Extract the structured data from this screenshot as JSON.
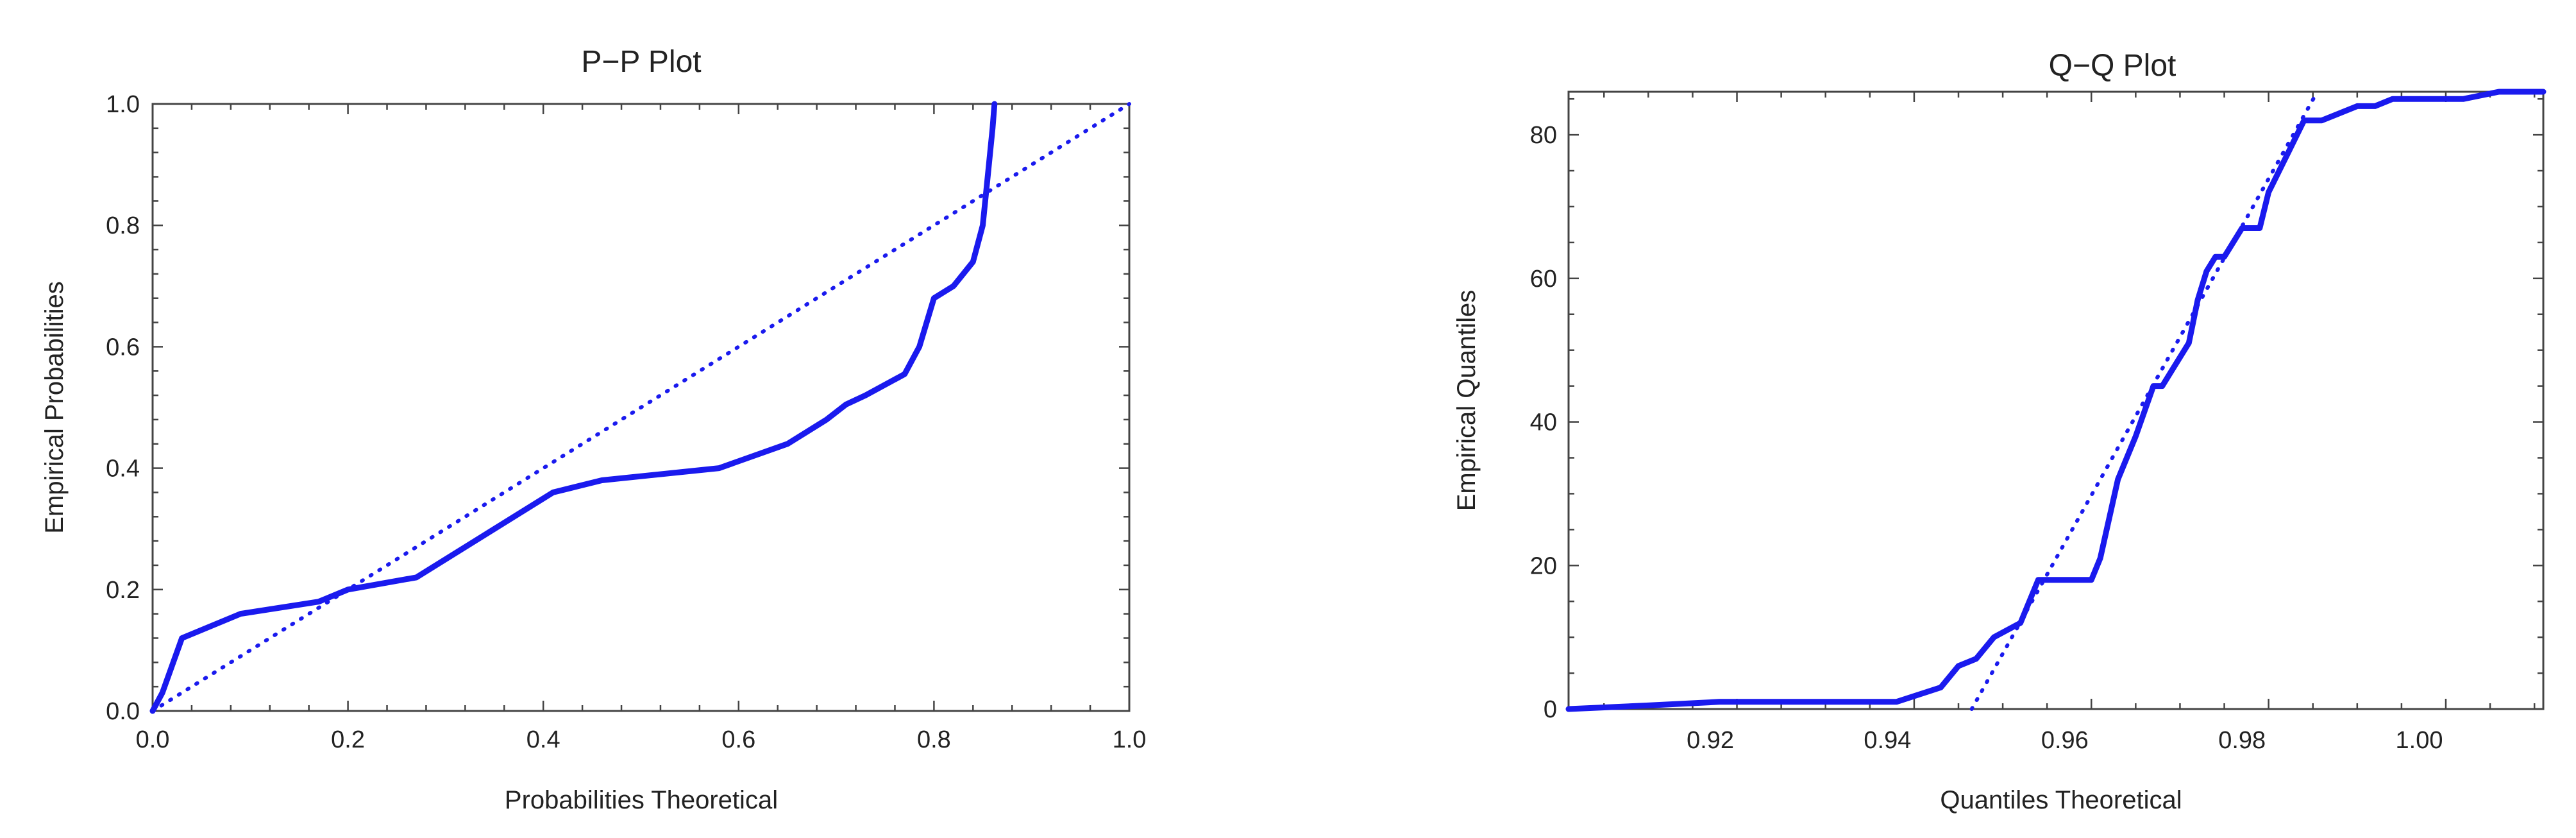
{
  "colors": {
    "series": "#1a1aee",
    "frame": "#444444",
    "text": "#222222"
  },
  "chart_data": [
    {
      "type": "line",
      "title": "P−P Plot",
      "xlabel": "Probabilities Theoretical",
      "ylabel": "Empirical  Probabilities",
      "xlim": [
        0,
        1
      ],
      "ylim": [
        0,
        1
      ],
      "xticks": [
        0.0,
        0.2,
        0.4,
        0.6,
        0.8,
        1.0
      ],
      "xtick_labels": [
        "0.0",
        "0.2",
        "0.4",
        "0.6",
        "0.8",
        "1.0"
      ],
      "yticks": [
        0.0,
        0.2,
        0.4,
        0.6,
        0.8,
        1.0
      ],
      "ytick_labels": [
        "0.0",
        "0.2",
        "0.4",
        "0.6",
        "0.8",
        "1.0"
      ],
      "series": [
        {
          "style": "solid",
          "x": [
            0.0,
            0.01,
            0.03,
            0.09,
            0.17,
            0.2,
            0.27,
            0.34,
            0.41,
            0.46,
            0.58,
            0.65,
            0.69,
            0.71,
            0.73,
            0.77,
            0.785,
            0.8,
            0.82,
            0.84,
            0.85,
            0.855,
            0.86,
            0.862
          ],
          "y": [
            0.0,
            0.03,
            0.12,
            0.16,
            0.18,
            0.2,
            0.22,
            0.29,
            0.36,
            0.38,
            0.4,
            0.44,
            0.48,
            0.505,
            0.52,
            0.555,
            0.6,
            0.68,
            0.7,
            0.74,
            0.8,
            0.88,
            0.96,
            1.0
          ]
        },
        {
          "style": "dotted",
          "x": [
            0.0,
            1.0
          ],
          "y": [
            0.0,
            1.0
          ]
        }
      ]
    },
    {
      "type": "line",
      "title": "Q−Q Plot",
      "xlabel": "Quantiles Theoretical",
      "ylabel": "Empirical  Quantiles",
      "xlim": [
        0.901,
        1.011
      ],
      "ylim": [
        0,
        86
      ],
      "xticks": [
        0.92,
        0.94,
        0.96,
        0.98,
        1.0
      ],
      "xtick_labels": [
        "0.92",
        "0.94",
        "0.96",
        "0.98",
        "1.00"
      ],
      "yticks": [
        0,
        20,
        40,
        60,
        80
      ],
      "ytick_labels": [
        "0",
        "20",
        "40",
        "60",
        "80"
      ],
      "series": [
        {
          "style": "solid",
          "x": [
            0.901,
            0.91,
            0.918,
            0.93,
            0.938,
            0.943,
            0.945,
            0.947,
            0.949,
            0.952,
            0.954,
            0.956,
            0.96,
            0.961,
            0.963,
            0.965,
            0.967,
            0.968,
            0.969,
            0.971,
            0.972,
            0.973,
            0.974,
            0.975,
            0.977,
            0.978,
            0.979,
            0.98,
            0.982,
            0.984,
            0.986,
            0.988,
            0.99,
            0.992,
            0.994,
            0.996,
            1.002,
            1.006,
            1.011
          ],
          "y": [
            0,
            0.5,
            1,
            1,
            1,
            3,
            6,
            7,
            10,
            12,
            18,
            18,
            18,
            21,
            32,
            38,
            45,
            45,
            47,
            51,
            57,
            61,
            63,
            63,
            67,
            67,
            67,
            72,
            77,
            82,
            82,
            83,
            84,
            84,
            85,
            85,
            85,
            86,
            86
          ]
        },
        {
          "style": "dotted",
          "x": [
            0.9465,
            0.9855
          ],
          "y": [
            0,
            86
          ]
        }
      ]
    }
  ]
}
